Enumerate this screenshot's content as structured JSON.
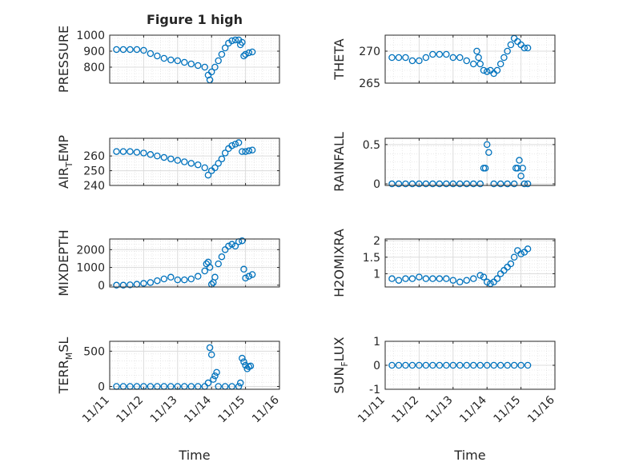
{
  "figure": {
    "title": "Figure 1 high",
    "xlabel": "Time",
    "marker_color": "#0072BD"
  },
  "chart_data": [
    {
      "type": "scatter",
      "ylabel": "PRESSURE",
      "ylabel_main": "PRESSURE",
      "ylabel_sub": "",
      "ylim": [
        700,
        1000
      ],
      "yticks": [
        800,
        900,
        1000
      ],
      "yticklabels": [
        "800",
        "900",
        "1000"
      ],
      "x": [
        11.2,
        11.4,
        11.6,
        11.8,
        12.0,
        12.2,
        12.4,
        12.6,
        12.8,
        13.0,
        13.2,
        13.4,
        13.6,
        13.8,
        13.9,
        13.95,
        14.0,
        14.1,
        14.2,
        14.3,
        14.4,
        14.5,
        14.6,
        14.7,
        14.8,
        14.85,
        14.9,
        14.95,
        15.0,
        15.1,
        15.2
      ],
      "y": [
        910,
        910,
        910,
        910,
        905,
        885,
        870,
        855,
        845,
        840,
        830,
        820,
        810,
        800,
        750,
        720,
        770,
        800,
        840,
        880,
        920,
        950,
        965,
        970,
        970,
        940,
        955,
        870,
        880,
        890,
        895
      ]
    },
    {
      "type": "scatter",
      "ylabel": "THETA",
      "ylabel_main": "THETA",
      "ylabel_sub": "",
      "ylim": [
        265,
        272.5
      ],
      "yticks": [
        265,
        270
      ],
      "yticklabels": [
        "265",
        "270"
      ],
      "x": [
        11.2,
        11.4,
        11.6,
        11.8,
        12.0,
        12.2,
        12.4,
        12.6,
        12.8,
        13.0,
        13.2,
        13.4,
        13.6,
        13.7,
        13.75,
        13.8,
        13.9,
        14.0,
        14.1,
        14.2,
        14.3,
        14.4,
        14.5,
        14.6,
        14.7,
        14.8,
        14.9,
        15.0,
        15.1,
        15.2
      ],
      "y": [
        269,
        269,
        269,
        268.5,
        268.5,
        269,
        269.5,
        269.5,
        269.5,
        269,
        269,
        268.5,
        268,
        270,
        269,
        268,
        267,
        266.8,
        267,
        266.5,
        267,
        268,
        269,
        270,
        271,
        272,
        271.5,
        271,
        270.5,
        270.5
      ]
    },
    {
      "type": "scatter",
      "ylabel": "AIR_TEMP",
      "ylabel_main": "AIR",
      "ylabel_sub": "T",
      "ylabel_rest": "EMP",
      "ylim": [
        240,
        272
      ],
      "yticks": [
        240,
        250,
        260
      ],
      "yticklabels": [
        "240",
        "250",
        "260"
      ],
      "x": [
        11.2,
        11.4,
        11.6,
        11.8,
        12.0,
        12.2,
        12.4,
        12.6,
        12.8,
        13.0,
        13.2,
        13.4,
        13.6,
        13.8,
        13.9,
        14.0,
        14.1,
        14.2,
        14.3,
        14.4,
        14.5,
        14.6,
        14.7,
        14.8,
        14.9,
        15.0,
        15.1,
        15.2
      ],
      "y": [
        263,
        263,
        263,
        262.5,
        262,
        261,
        260,
        259,
        258,
        257,
        256,
        255,
        254,
        252,
        247,
        250,
        252,
        255,
        258,
        262,
        265,
        267,
        268,
        269,
        263,
        263,
        263.5,
        264
      ]
    },
    {
      "type": "scatter",
      "ylabel": "RAINFALL",
      "ylabel_main": "RAINFALL",
      "ylabel_sub": "",
      "ylim": [
        -0.02,
        0.58
      ],
      "yticks": [
        0,
        0.5
      ],
      "yticklabels": [
        "0",
        "0.5"
      ],
      "x": [
        11.2,
        11.4,
        11.6,
        11.8,
        12.0,
        12.2,
        12.4,
        12.6,
        12.8,
        13.0,
        13.2,
        13.4,
        13.6,
        13.8,
        13.9,
        13.95,
        14.0,
        14.05,
        14.2,
        14.4,
        14.6,
        14.8,
        14.85,
        14.9,
        14.95,
        15.0,
        15.05,
        15.1,
        15.2
      ],
      "y": [
        0,
        0,
        0,
        0,
        0,
        0,
        0,
        0,
        0,
        0,
        0,
        0,
        0,
        0,
        0.2,
        0.2,
        0.5,
        0.4,
        0,
        0,
        0,
        0,
        0.2,
        0.2,
        0.3,
        0.1,
        0.2,
        0,
        0
      ]
    },
    {
      "type": "scatter",
      "ylabel": "MIXDEPTH",
      "ylabel_main": "MIXDEPTH",
      "ylabel_sub": "",
      "ylim": [
        -100,
        2600
      ],
      "yticks": [
        0,
        1000,
        2000
      ],
      "yticklabels": [
        "0",
        "1000",
        "2000"
      ],
      "x": [
        11.2,
        11.4,
        11.6,
        11.8,
        12.0,
        12.2,
        12.4,
        12.6,
        12.8,
        13.0,
        13.2,
        13.4,
        13.6,
        13.8,
        13.85,
        13.9,
        13.95,
        14.0,
        14.05,
        14.1,
        14.2,
        14.3,
        14.4,
        14.5,
        14.6,
        14.7,
        14.8,
        14.9,
        14.95,
        15.0,
        15.1,
        15.2
      ],
      "y": [
        0,
        0,
        20,
        50,
        100,
        150,
        250,
        350,
        450,
        300,
        300,
        350,
        500,
        800,
        1200,
        1300,
        1000,
        50,
        150,
        450,
        1200,
        1600,
        2000,
        2200,
        2300,
        2200,
        2450,
        2500,
        900,
        400,
        500,
        600
      ]
    },
    {
      "type": "scatter",
      "ylabel": "H2OMIXRA",
      "ylabel_main": "H2OMIXRA",
      "ylabel_sub": "",
      "ylim": [
        0.6,
        2.05
      ],
      "yticks": [
        1,
        1.5,
        2
      ],
      "yticklabels": [
        "1",
        "1.5",
        "2"
      ],
      "x": [
        11.2,
        11.4,
        11.6,
        11.8,
        12.0,
        12.2,
        12.4,
        12.6,
        12.8,
        13.0,
        13.2,
        13.4,
        13.6,
        13.8,
        13.9,
        14.0,
        14.1,
        14.2,
        14.3,
        14.4,
        14.5,
        14.6,
        14.7,
        14.8,
        14.9,
        15.0,
        15.1,
        15.2
      ],
      "y": [
        0.85,
        0.8,
        0.85,
        0.85,
        0.9,
        0.85,
        0.85,
        0.85,
        0.85,
        0.8,
        0.75,
        0.8,
        0.85,
        0.95,
        0.9,
        0.75,
        0.7,
        0.75,
        0.85,
        1.0,
        1.1,
        1.2,
        1.3,
        1.5,
        1.7,
        1.6,
        1.65,
        1.75
      ]
    },
    {
      "type": "scatter",
      "ylabel": "TERR_MSL",
      "ylabel_main": "TERR",
      "ylabel_sub": "M",
      "ylabel_rest": "SL",
      "ylim": [
        -40,
        640
      ],
      "yticks": [
        0,
        500
      ],
      "yticklabels": [
        "0",
        "500"
      ],
      "x": [
        11.2,
        11.4,
        11.6,
        11.8,
        12.0,
        12.2,
        12.4,
        12.6,
        12.8,
        13.0,
        13.2,
        13.4,
        13.6,
        13.8,
        13.9,
        13.95,
        14.0,
        14.05,
        14.1,
        14.15,
        14.2,
        14.4,
        14.6,
        14.8,
        14.85,
        14.9,
        14.95,
        15.0,
        15.05,
        15.1,
        15.15
      ],
      "y": [
        0,
        0,
        0,
        0,
        0,
        0,
        0,
        0,
        0,
        0,
        0,
        0,
        0,
        0,
        50,
        550,
        450,
        100,
        150,
        200,
        0,
        0,
        0,
        0,
        50,
        400,
        350,
        300,
        250,
        280,
        290
      ]
    },
    {
      "type": "scatter",
      "ylabel": "SUN_FLUX",
      "ylabel_main": "SUN",
      "ylabel_sub": "F",
      "ylabel_rest": "LUX",
      "ylim": [
        -1,
        1
      ],
      "yticks": [
        -1,
        0,
        1
      ],
      "yticklabels": [
        "-1",
        "0",
        "1"
      ],
      "x": [
        11.2,
        11.4,
        11.6,
        11.8,
        12.0,
        12.2,
        12.4,
        12.6,
        12.8,
        13.0,
        13.2,
        13.4,
        13.6,
        13.8,
        14.0,
        14.2,
        14.4,
        14.6,
        14.8,
        15.0,
        15.2
      ],
      "y": [
        0,
        0,
        0,
        0,
        0,
        0,
        0,
        0,
        0,
        0,
        0,
        0,
        0,
        0,
        0,
        0,
        0,
        0,
        0,
        0,
        0
      ]
    }
  ],
  "xaxis": {
    "xlim": [
      11,
      16
    ],
    "ticks": [
      11,
      12,
      13,
      14,
      15,
      16
    ],
    "ticklabels": [
      "11/11",
      "11/12",
      "11/13",
      "11/14",
      "11/15",
      "11/16"
    ]
  }
}
